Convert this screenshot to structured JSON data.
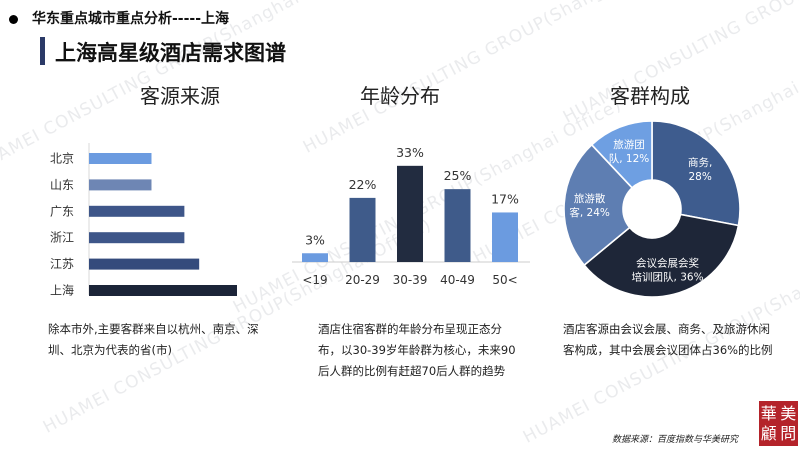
{
  "header": {
    "text": "华东重点城市重点分析-----上海"
  },
  "page_title": "上海高星级酒店需求图谱",
  "watermark": "HUAMEI CONSULTING GROUP(Shanghai Office)",
  "sections": {
    "source": {
      "title": "客源来源",
      "description": "除本市外,主要客群来自以杭州、南京、深圳、北京为代表的省(市)"
    },
    "age": {
      "title": "年龄分布",
      "description": "酒店住宿客群的年龄分布呈现正态分布，以30-39岁年龄群为核心，未来90后人群的比例有赶超70后人群的趋势"
    },
    "segment": {
      "title": "客群构成",
      "description": "酒店客源由会议会展、商务、及旅游休闲客构成，其中会展会议团体占36%的比例"
    }
  },
  "chart_data": [
    {
      "type": "bar",
      "orientation": "horizontal",
      "categories": [
        "北京",
        "山东",
        "广东",
        "浙江",
        "江苏",
        "上海"
      ],
      "values": [
        38,
        38,
        58,
        58,
        67,
        90
      ],
      "colors": [
        "#6b9be0",
        "#6e86b4",
        "#3e5689",
        "#3e5689",
        "#344b7c",
        "#1b2438"
      ]
    },
    {
      "type": "bar",
      "categories": [
        "<19",
        "20-29",
        "30-39",
        "40-49",
        "50<"
      ],
      "values": [
        3,
        22,
        33,
        25,
        17
      ],
      "data_labels": [
        "3%",
        "22%",
        "33%",
        "25%",
        "17%"
      ],
      "ylim": [
        0,
        35
      ],
      "colors": [
        "#6b9be0",
        "#3f5b8a",
        "#222c40",
        "#3f5b8a",
        "#6b9be0"
      ]
    },
    {
      "type": "pie",
      "donut": true,
      "slices": [
        {
          "label_line1": "商务,",
          "label_line2": "28%",
          "value": 28,
          "color": "#3e5c8e"
        },
        {
          "label_line1": "会议会展会奖",
          "label_line2": "培训团队, 36%",
          "value": 36,
          "color": "#1e2638"
        },
        {
          "label_line1": "旅游散",
          "label_line2": "客, 24%",
          "value": 24,
          "color": "#5e7eb2"
        },
        {
          "label_line1": "旅游团",
          "label_line2": "队, 12%",
          "value": 12,
          "color": "#6e9fe2"
        }
      ]
    }
  ],
  "footer": {
    "source": "数据来源：百度指数与华美研究"
  },
  "logo": {
    "chars": [
      "華",
      "美",
      "顧",
      "問"
    ]
  }
}
